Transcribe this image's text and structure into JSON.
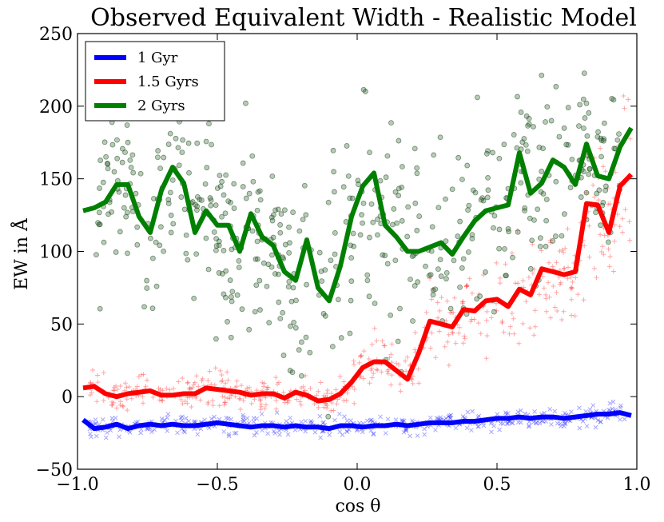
{
  "chart_data": {
    "type": "line",
    "title": "Observed Equivalent Width - Realistic Model",
    "xlabel": "cos θ",
    "ylabel": "EW in Å",
    "xlim": [
      -1.0,
      1.0
    ],
    "ylim": [
      -50,
      250
    ],
    "xticks": [
      -1.0,
      -0.5,
      0.0,
      0.5,
      1.0
    ],
    "xtick_labels": [
      "−1.0",
      "−0.5",
      "0.0",
      "0.5",
      "1.0"
    ],
    "yticks": [
      -50,
      0,
      50,
      100,
      150,
      200,
      250
    ],
    "ytick_labels": [
      "−50",
      "0",
      "50",
      "100",
      "150",
      "200",
      "250"
    ],
    "grid": false,
    "legend_position": "top-left",
    "series": [
      {
        "name": "1 Gyr",
        "color": "#0000ff",
        "x": [
          -0.98,
          -0.94,
          -0.9,
          -0.86,
          -0.82,
          -0.78,
          -0.74,
          -0.7,
          -0.66,
          -0.62,
          -0.58,
          -0.54,
          -0.5,
          -0.46,
          -0.42,
          -0.38,
          -0.34,
          -0.3,
          -0.26,
          -0.22,
          -0.18,
          -0.14,
          -0.1,
          -0.06,
          -0.02,
          0.02,
          0.06,
          0.1,
          0.14,
          0.18,
          0.22,
          0.26,
          0.3,
          0.34,
          0.38,
          0.42,
          0.46,
          0.5,
          0.54,
          0.58,
          0.62,
          0.66,
          0.7,
          0.74,
          0.78,
          0.82,
          0.86,
          0.9,
          0.94,
          0.98
        ],
        "y": [
          -16,
          -22,
          -21,
          -19,
          -22,
          -20,
          -19,
          -20,
          -19,
          -20,
          -20,
          -19,
          -18,
          -19,
          -20,
          -21,
          -20,
          -20,
          -21,
          -20,
          -21,
          -21,
          -22,
          -20,
          -20,
          -21,
          -20,
          -20,
          -19,
          -20,
          -19,
          -18,
          -18,
          -18,
          -17,
          -17,
          -16,
          -15,
          -15,
          -14,
          -15,
          -14,
          -14,
          -15,
          -14,
          -13,
          -12,
          -12,
          -11,
          -13
        ]
      },
      {
        "name": "1.5 Gyrs",
        "color": "#ff0000",
        "x": [
          -0.98,
          -0.94,
          -0.9,
          -0.86,
          -0.82,
          -0.78,
          -0.74,
          -0.7,
          -0.66,
          -0.62,
          -0.58,
          -0.54,
          -0.5,
          -0.46,
          -0.42,
          -0.38,
          -0.34,
          -0.3,
          -0.26,
          -0.22,
          -0.18,
          -0.14,
          -0.1,
          -0.06,
          -0.02,
          0.02,
          0.06,
          0.1,
          0.14,
          0.18,
          0.22,
          0.26,
          0.3,
          0.34,
          0.38,
          0.42,
          0.46,
          0.5,
          0.54,
          0.58,
          0.62,
          0.66,
          0.7,
          0.74,
          0.78,
          0.82,
          0.86,
          0.9,
          0.94,
          0.98
        ],
        "y": [
          6,
          7,
          2,
          0,
          2,
          3,
          4,
          1,
          1,
          2,
          2,
          6,
          5,
          4,
          3,
          1,
          2,
          2,
          -1,
          3,
          1,
          -3,
          -2,
          2,
          10,
          20,
          24,
          24,
          18,
          12,
          30,
          52,
          50,
          48,
          60,
          59,
          66,
          67,
          62,
          74,
          70,
          88,
          86,
          84,
          86,
          133,
          132,
          113,
          145,
          153
        ]
      },
      {
        "name": "2 Gyrs",
        "color": "#008000",
        "x": [
          -0.98,
          -0.94,
          -0.9,
          -0.86,
          -0.82,
          -0.78,
          -0.74,
          -0.7,
          -0.66,
          -0.62,
          -0.58,
          -0.54,
          -0.5,
          -0.46,
          -0.42,
          -0.38,
          -0.34,
          -0.3,
          -0.26,
          -0.22,
          -0.18,
          -0.14,
          -0.1,
          -0.06,
          -0.02,
          0.02,
          0.06,
          0.1,
          0.14,
          0.18,
          0.22,
          0.26,
          0.3,
          0.34,
          0.38,
          0.42,
          0.46,
          0.5,
          0.54,
          0.58,
          0.62,
          0.66,
          0.7,
          0.74,
          0.78,
          0.82,
          0.86,
          0.9,
          0.94,
          0.98
        ],
        "y": [
          128,
          130,
          134,
          146,
          146,
          124,
          113,
          142,
          158,
          147,
          113,
          128,
          118,
          118,
          100,
          126,
          110,
          104,
          86,
          80,
          108,
          75,
          66,
          90,
          124,
          145,
          154,
          118,
          110,
          100,
          100,
          103,
          106,
          98,
          110,
          121,
          128,
          130,
          132,
          168,
          140,
          147,
          163,
          158,
          146,
          174,
          152,
          150,
          172,
          185
        ]
      }
    ],
    "scatter_note": "Faint background scatter clouds per series (cross / x / circle markers)"
  }
}
